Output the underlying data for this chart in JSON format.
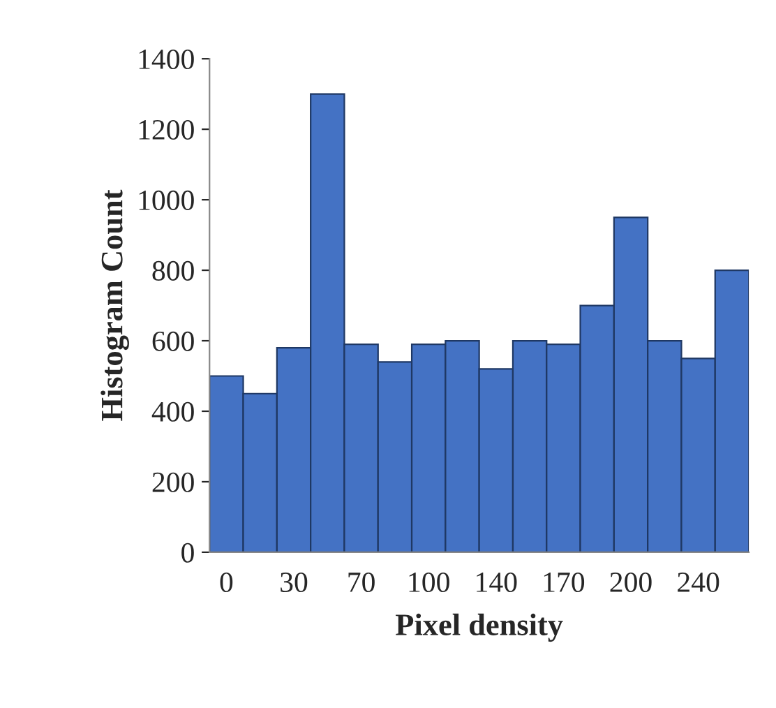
{
  "chart_data": {
    "type": "bar",
    "xlabel": "Pixel density",
    "ylabel": "Histogram Count",
    "categories": [
      "0",
      null,
      "30",
      null,
      "70",
      null,
      "100",
      null,
      "140",
      null,
      "170",
      null,
      "200",
      null,
      "240",
      null
    ],
    "values": [
      500,
      450,
      580,
      1300,
      590,
      540,
      590,
      600,
      520,
      600,
      590,
      700,
      950,
      600,
      550,
      800
    ],
    "color": "#4472c4",
    "ylim": [
      0,
      1400
    ],
    "yticks": [
      0,
      200,
      400,
      600,
      800,
      1000,
      1200,
      1400
    ],
    "grid": false
  }
}
